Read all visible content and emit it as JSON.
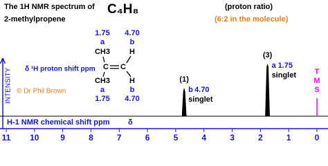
{
  "chart_data": {
    "type": "nmr",
    "title": [
      "The 1H NMR spectrum of",
      "2-methylpropene"
    ],
    "formula": "C₄H₈",
    "ratio_title": "(proton ratio)",
    "ratio_note": "(6:2 in the molecule)",
    "shift_note": "δ ¹H proton shift ppm",
    "ylabel": "INTENSITY",
    "credit": "© Dr Phil Brown",
    "xlabel": "H-1 NMR chemical shift ppm",
    "xlabel_symbol": "δ",
    "tms": [
      "T",
      "M",
      "S"
    ],
    "xlim": [
      11,
      0
    ],
    "xticks": [
      11,
      10,
      9,
      8,
      7,
      6,
      5,
      4,
      3,
      2,
      1,
      0
    ],
    "ylim": [
      0,
      100
    ],
    "x": [
      4.7,
      1.75
    ],
    "x_labels": [
      "4.70",
      "1.75"
    ],
    "values": [
      40,
      75
    ],
    "peak_ratio": [
      "(1)",
      "(3)"
    ],
    "peak_proton": [
      "b",
      "a"
    ],
    "multiplicity": [
      "singlet",
      "singlet"
    ],
    "molecule": {
      "top_left": [
        "1.75",
        "a",
        "CH3"
      ],
      "bottom_left": [
        "CH3",
        "a",
        "1.75"
      ],
      "top_right": [
        "4.70",
        "b",
        "H"
      ],
      "bottom_right": [
        "H",
        "b",
        "4.70"
      ],
      "carbons": [
        "C",
        "C"
      ]
    }
  }
}
